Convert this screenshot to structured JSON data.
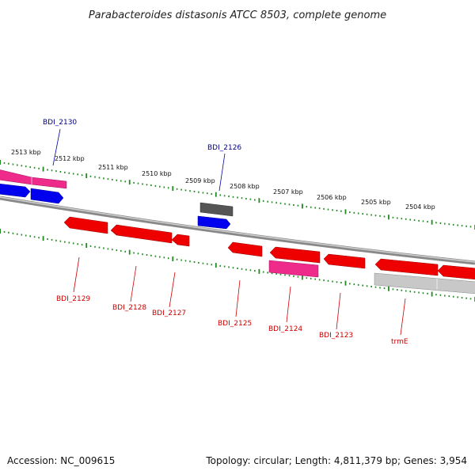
{
  "title": "Parabacteroides distasonis ATCC 8503, complete genome",
  "footer": {
    "accession": "Accession: NC_009615",
    "summary": "Topology: circular; Length: 4,811,379 bp; Genes: 3,954"
  },
  "kbp_labels": [
    "2513 kbp",
    "2512 kbp",
    "2511 kbp",
    "2510 kbp",
    "2509 kbp",
    "2508 kbp",
    "2507 kbp",
    "2506 kbp",
    "2505 kbp",
    "2504 kbp"
  ],
  "gene_labels": {
    "top": [
      "BDI_2130",
      "BDI_2126"
    ],
    "bottom": [
      "BDI_2129",
      "BDI_2128",
      "BDI_2127",
      "BDI_2125",
      "BDI_2124",
      "BDI_2123",
      "trmE"
    ]
  },
  "colors": {
    "forward_gene": "#0000ee",
    "reverse_gene": "#ee0000",
    "pseudo_gene": "#ee2a8a",
    "dark_gene": "#555555",
    "light_gene": "#c0c0c0",
    "tick": "#1f8a1f",
    "top_label": "#000088",
    "bottom_label": "#cc0000"
  }
}
